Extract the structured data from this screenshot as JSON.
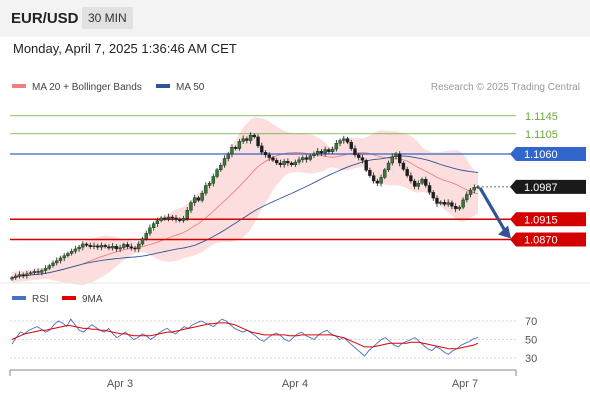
{
  "header": {
    "pair": "EUR/USD",
    "timeframe": "30 MIN",
    "datetime": "Monday, April 7, 2025 1:36:46 AM CET"
  },
  "chart_data": [
    {
      "type": "candlestick",
      "legend": [
        {
          "name": "MA 20 + Bollinger Bands",
          "color": "#f08080"
        },
        {
          "name": "MA 50",
          "color": "#2f5597"
        }
      ],
      "legend_placement": "top-left",
      "credit": "Research © 2025 Trading Central",
      "ylim": [
        1.078,
        1.118
      ],
      "x_labels": [
        "Apr 3",
        "Apr 4",
        "Apr 7"
      ],
      "current_price": 1.0987,
      "levels": [
        {
          "label": "1.1145",
          "value": 1.1145,
          "kind": "resistance-minor",
          "color": "#6aaa3a"
        },
        {
          "label": "1.1105",
          "value": 1.1105,
          "kind": "resistance-minor",
          "color": "#6aaa3a"
        },
        {
          "label": "1.1060",
          "value": 1.106,
          "kind": "pivot",
          "color": "#3366cc"
        },
        {
          "label": "1.0915",
          "value": 1.0915,
          "kind": "support",
          "color": "#d40000"
        },
        {
          "label": "1.0870",
          "value": 1.087,
          "kind": "support",
          "color": "#d40000"
        }
      ],
      "close_series": [
        1.0785,
        1.0789,
        1.0792,
        1.079,
        1.0794,
        1.0796,
        1.0799,
        1.0797,
        1.0801,
        1.0806,
        1.0812,
        1.0818,
        1.0823,
        1.0829,
        1.0834,
        1.0839,
        1.0844,
        1.0849,
        1.0853,
        1.086,
        1.0857,
        1.0854,
        1.0856,
        1.0853,
        1.0857,
        1.0854,
        1.0851,
        1.0855,
        1.0849,
        1.0852,
        1.0859,
        1.0854,
        1.0851,
        1.0849,
        1.086,
        1.0872,
        1.0884,
        1.0896,
        1.0905,
        1.0912,
        1.0918,
        1.0916,
        1.092,
        1.0918,
        1.0915,
        1.0912,
        1.0917,
        1.0935,
        1.0952,
        1.0963,
        1.0957,
        1.0973,
        1.099,
        1.0995,
        1.101,
        1.1025,
        1.1035,
        1.105,
        1.106,
        1.1075,
        1.1072,
        1.1088,
        1.1094,
        1.109,
        1.1102,
        1.1098,
        1.1078,
        1.1064,
        1.1058,
        1.1052,
        1.1046,
        1.104,
        1.1036,
        1.1044,
        1.104,
        1.1036,
        1.1042,
        1.1047,
        1.1052,
        1.1048,
        1.1056,
        1.106,
        1.1066,
        1.1062,
        1.107,
        1.1065,
        1.1071,
        1.1084,
        1.109,
        1.1094,
        1.1086,
        1.1072,
        1.1058,
        1.1052,
        1.1046,
        1.1024,
        1.1012,
        1.1,
        1.0995,
        1.1008,
        1.1025,
        1.104,
        1.1054,
        1.106,
        1.104,
        1.1026,
        1.1012,
        1.1,
        1.0988,
        1.0995,
        1.1004,
        1.099,
        1.0975,
        1.0962,
        1.095,
        1.0953,
        1.0948,
        1.0952,
        1.0944,
        1.0938,
        1.0942,
        1.0958,
        1.097,
        1.098,
        1.0986,
        1.0987
      ],
      "annotation": "arrow pointing down toward 1.0870"
    },
    {
      "type": "line",
      "legend": [
        {
          "name": "RSI",
          "color": "#4472c4"
        },
        {
          "name": "9MA",
          "color": "#e00000"
        }
      ],
      "y_ticks": [
        70,
        50,
        30
      ],
      "rsi_values": [
        45,
        52,
        58,
        56,
        60,
        62,
        64,
        61,
        58,
        60,
        66,
        70,
        68,
        64,
        72,
        66,
        60,
        58,
        62,
        66,
        63,
        60,
        58,
        62,
        56,
        52,
        55,
        58,
        54,
        50,
        52,
        56,
        54,
        50,
        53,
        57,
        60,
        62,
        58,
        56,
        60,
        64,
        62,
        66,
        68,
        70,
        68,
        66,
        64,
        68,
        72,
        70,
        66,
        62,
        60,
        58,
        60,
        57,
        54,
        50,
        48,
        52,
        55,
        57,
        54,
        50,
        48,
        52,
        56,
        58,
        54,
        52,
        50,
        55,
        58,
        60,
        56,
        54,
        50,
        52,
        48,
        44,
        40,
        36,
        32,
        38,
        42,
        46,
        50,
        52,
        48,
        44,
        42,
        46,
        48,
        50,
        52,
        48,
        44,
        40,
        38,
        42,
        40,
        36,
        34,
        38,
        40,
        44,
        46,
        48,
        51,
        52
      ],
      "ma9_values": [
        50,
        52,
        54,
        56,
        57,
        58,
        59,
        60,
        60,
        61,
        62,
        63,
        64,
        65,
        65,
        64,
        63,
        62,
        62,
        61,
        61,
        60,
        60,
        59,
        58,
        57,
        56,
        56,
        55,
        54,
        54,
        54,
        54,
        54,
        55,
        56,
        57,
        58,
        58,
        59,
        60,
        61,
        62,
        63,
        64,
        65,
        66,
        67,
        67,
        68,
        68,
        68,
        67,
        66,
        64,
        62,
        60,
        58,
        57,
        56,
        55,
        55,
        55,
        55,
        55,
        55,
        54,
        54,
        54,
        55,
        55,
        55,
        55,
        55,
        55,
        55,
        55,
        54,
        53,
        52,
        50,
        48,
        46,
        44,
        42,
        42,
        42,
        43,
        44,
        45,
        46,
        46,
        46,
        46,
        46,
        47,
        47,
        47,
        46,
        45,
        44,
        43,
        42,
        41,
        40,
        40,
        40,
        41,
        42,
        43,
        44,
        46
      ]
    }
  ]
}
